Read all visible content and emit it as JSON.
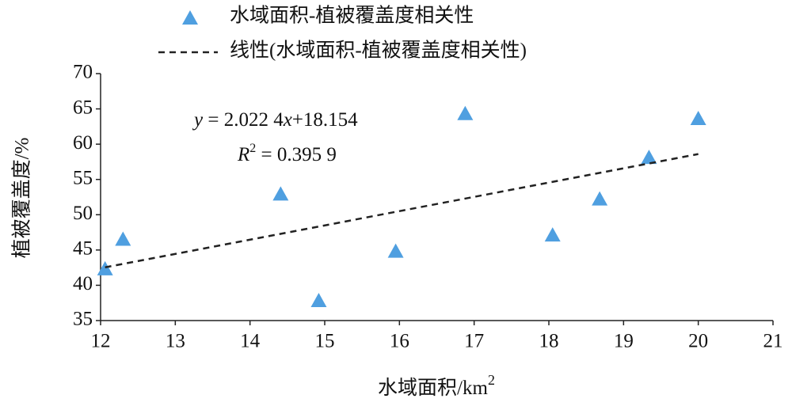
{
  "chart_data": {
    "type": "scatter",
    "xlabel": [
      "水域面积/km",
      "2"
    ],
    "ylabel": "植被覆盖度/%",
    "series": [
      {
        "name": "水域面积-植被覆盖度相关性",
        "color": "#4f9fe0",
        "x": [
          12.06,
          12.3,
          14.41,
          14.92,
          15.95,
          16.88,
          18.05,
          18.68,
          19.34,
          20.0
        ],
        "values": [
          42.3,
          46.5,
          52.9,
          37.8,
          44.8,
          64.3,
          47.1,
          52.2,
          58.1,
          63.6
        ]
      }
    ],
    "trendline": {
      "name": "线性(水域面积-植被覆盖度相关性)",
      "color": "#222222",
      "x": [
        12.06,
        20.0
      ],
      "values": [
        42.54,
        58.6
      ]
    },
    "annotations": {
      "equation": [
        "y",
        " = 2.022 4",
        "x",
        "+18.154"
      ],
      "r2": [
        "R",
        "2",
        " = 0.395 9"
      ]
    },
    "xlim": [
      12,
      21
    ],
    "xticks": [
      12,
      13,
      14,
      15,
      16,
      17,
      18,
      19,
      20,
      21
    ],
    "ylim": [
      35,
      70
    ],
    "yticks": [
      35,
      40,
      45,
      50,
      55,
      60,
      65,
      70
    ]
  }
}
